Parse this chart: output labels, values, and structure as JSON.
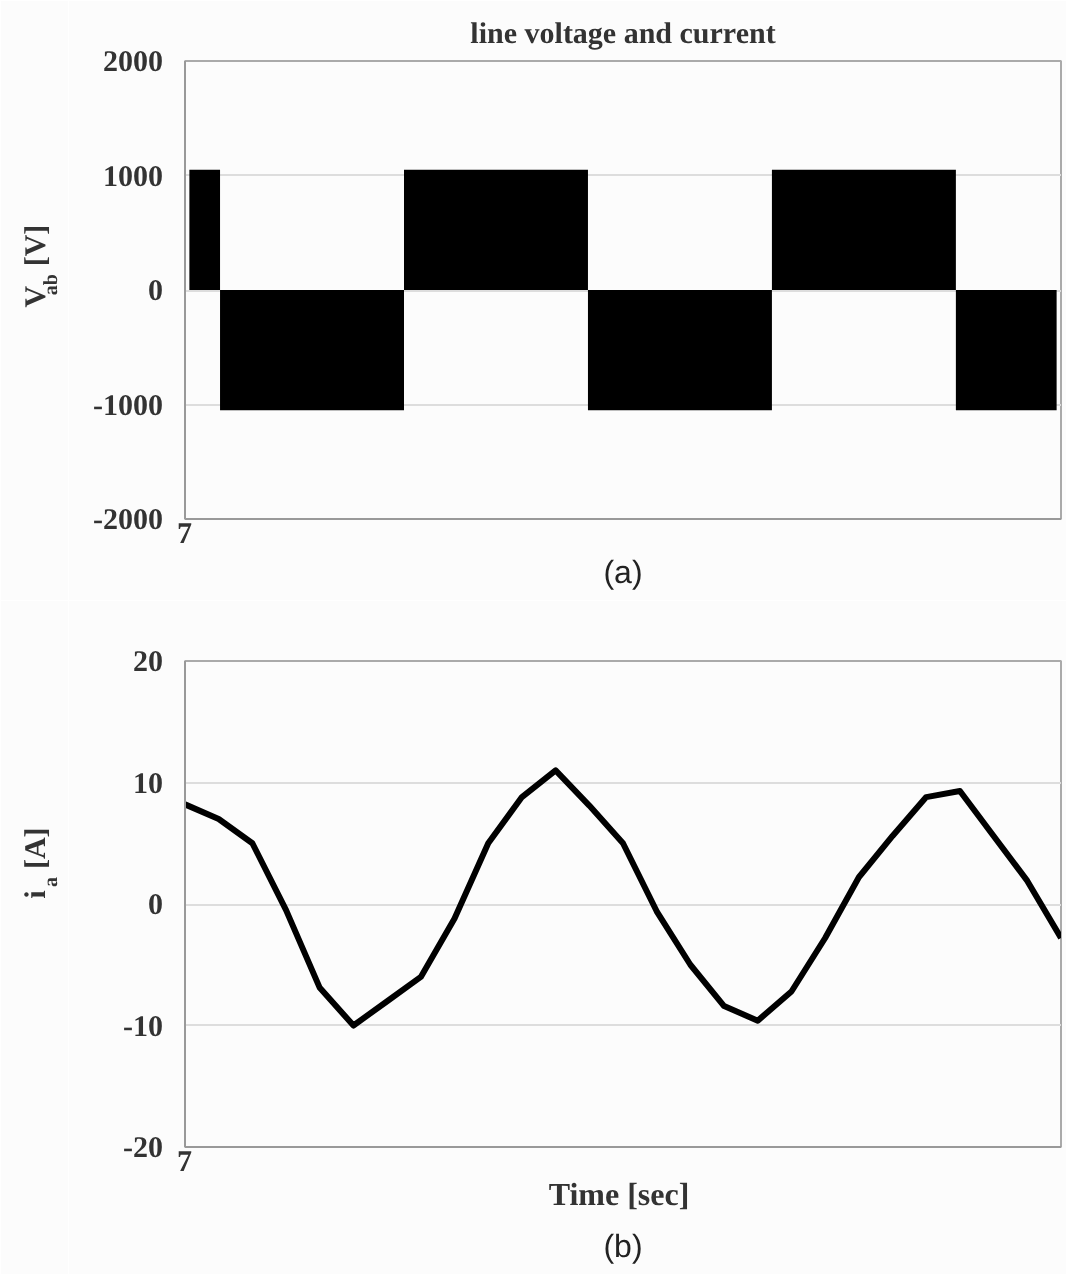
{
  "chart_data": [
    {
      "type": "area",
      "title": "line voltage and current",
      "ylabel": "V$_{ab}$ [V]",
      "annotations": [
        "7",
        "(a)"
      ],
      "categories": [
        null,
        null,
        null,
        null,
        null,
        null,
        null,
        null,
        null,
        null,
        null,
        null,
        null,
        null,
        null,
        null,
        null,
        null,
        null,
        null,
        null,
        null,
        null,
        null,
        null,
        null,
        null,
        null,
        null,
        null,
        null,
        null,
        null,
        null,
        null,
        null,
        null,
        null,
        null,
        null,
        null,
        null,
        null,
        null,
        null,
        null,
        null,
        null,
        null,
        null,
        null,
        null,
        null,
        null,
        null,
        null,
        null,
        null,
        null,
        null,
        null,
        null,
        null,
        null,
        null,
        null,
        null,
        null,
        null,
        null,
        null,
        null,
        null,
        null,
        null,
        null,
        null,
        null,
        null,
        null,
        null,
        null,
        null,
        null,
        null,
        null,
        null,
        null,
        null,
        null,
        null,
        null,
        null,
        null,
        null,
        null,
        null,
        null,
        null,
        null
      ],
      "series": [
        {
          "color": "#000000",
          "values": [
            1050,
            1050,
            1050,
            1050,
            -1050,
            -1050,
            -1050,
            -1050,
            -1050,
            -1050,
            -1050,
            -1050,
            -1050,
            -1050,
            -1050,
            -1050,
            -1050,
            -1050,
            -1050,
            -1050,
            -1050,
            -1050,
            -1050,
            -1050,
            -1050,
            1050,
            1050,
            1050,
            1050,
            1050,
            1050,
            1050,
            1050,
            1050,
            1050,
            1050,
            1050,
            1050,
            1050,
            1050,
            1050,
            1050,
            1050,
            1050,
            1050,
            1050,
            -1050,
            -1050,
            -1050,
            -1050,
            -1050,
            -1050,
            -1050,
            -1050,
            -1050,
            -1050,
            -1050,
            -1050,
            -1050,
            -1050,
            -1050,
            -1050,
            -1050,
            -1050,
            -1050,
            -1050,
            -1050,
            1050,
            1050,
            1050,
            1050,
            1050,
            1050,
            1050,
            1050,
            1050,
            1050,
            1050,
            1050,
            1050,
            1050,
            1050,
            1050,
            1050,
            1050,
            1050,
            1050,
            1050,
            -1050,
            -1050,
            -1050,
            -1050,
            -1050,
            -1050,
            -1050,
            -1050,
            -1050,
            -1050,
            -1050,
            -1050
          ]
        }
      ],
      "ylim": [
        -2000,
        2000
      ],
      "yticks": [
        -2000,
        -1000,
        0,
        1000,
        2000
      ],
      "grid": "y"
    },
    {
      "type": "line",
      "xlabel": "Time  [sec]",
      "ylabel": "i$_{a}$ [A]",
      "annotations": [
        "7",
        "(b)"
      ],
      "categories": [
        null,
        null,
        null,
        null,
        null,
        null,
        null,
        null,
        null,
        null,
        null,
        null,
        null,
        null,
        null,
        null,
        null,
        null,
        null,
        null,
        null,
        null,
        null,
        null,
        null,
        null,
        null
      ],
      "series": [
        {
          "color": "#000000",
          "values": [
            8.2,
            7,
            5,
            -0.5,
            -6.9,
            -10,
            -8,
            -6,
            -1.2,
            5,
            8.8,
            11,
            8.1,
            5,
            -0.6,
            -5,
            -8.4,
            -9.6,
            -7.2,
            -2.8,
            2.2,
            5.6,
            8.8,
            9.3,
            5.6,
            1.9,
            -2.8
          ]
        }
      ],
      "ylim": [
        -20,
        20
      ],
      "yticks": [
        -20,
        -10,
        0,
        10,
        20
      ],
      "grid": "y",
      "line_style": "solid",
      "marker": "none"
    }
  ]
}
